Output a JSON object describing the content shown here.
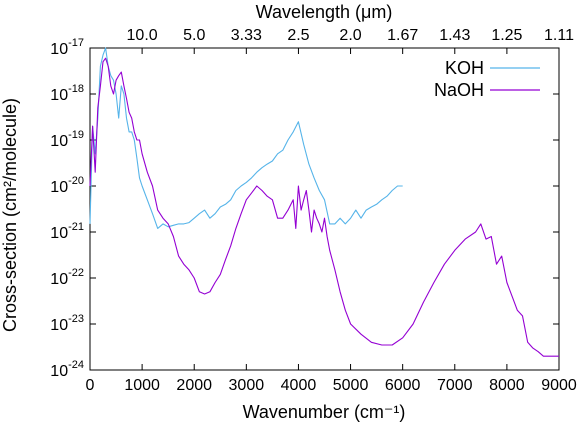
{
  "chart_data": {
    "type": "line",
    "xlabel": "Wavenumber (cm⁻¹)",
    "ylabel": "Cross-section (cm²/molecule)",
    "top_axis_label": "Wavelength (μm)",
    "xlim": [
      0,
      9000
    ],
    "ylim": [
      1e-24,
      1e-17
    ],
    "yscale": "log",
    "grid": false,
    "legend_position": "top-right",
    "x_ticks": [
      "0",
      "1000",
      "2000",
      "3000",
      "4000",
      "5000",
      "6000",
      "7000",
      "8000",
      "9000"
    ],
    "x_tick_values": [
      0,
      1000,
      2000,
      3000,
      4000,
      5000,
      6000,
      7000,
      8000,
      9000
    ],
    "y_tick_exponents": [
      "-24",
      "-23",
      "-22",
      "-21",
      "-20",
      "-19",
      "-18",
      "-17"
    ],
    "y_tick_values": [
      1e-24,
      1e-23,
      1e-22,
      1e-21,
      1e-20,
      1e-19,
      1e-18,
      1e-17
    ],
    "y_tick_base": "10",
    "top_ticks": [
      "10.0",
      "5.0",
      "3.33",
      "2.5",
      "2.0",
      "1.67",
      "1.43",
      "1.25",
      "1.11"
    ],
    "top_tick_wavenumbers": [
      1000,
      2000,
      3000,
      4000,
      5000,
      6000,
      7000,
      8000,
      9000
    ],
    "series": [
      {
        "name": "KOH",
        "color": "#56b4e9",
        "x": [
          0,
          50,
          100,
          150,
          200,
          250,
          300,
          350,
          400,
          450,
          500,
          550,
          600,
          650,
          700,
          750,
          800,
          850,
          900,
          950,
          1000,
          1100,
          1200,
          1300,
          1400,
          1500,
          1600,
          1700,
          1800,
          1900,
          2000,
          2100,
          2200,
          2300,
          2400,
          2500,
          2600,
          2700,
          2800,
          2900,
          3000,
          3100,
          3200,
          3300,
          3400,
          3500,
          3600,
          3700,
          3800,
          3900,
          4000,
          4100,
          4200,
          4300,
          4400,
          4500,
          4600,
          4700,
          4800,
          4900,
          5000,
          5100,
          5200,
          5300,
          5400,
          5500,
          5600,
          5700,
          5800,
          5900,
          6000
        ],
        "y": [
          1.5e-21,
          2e-19,
          5e-20,
          3e-19,
          4e-18,
          7e-18,
          1e-17,
          4e-18,
          2.5e-18,
          2e-18,
          1e-18,
          3e-19,
          1.5e-18,
          1e-18,
          3e-19,
          1.5e-19,
          1.5e-19,
          1e-19,
          4e-20,
          1.5e-20,
          1e-20,
          5e-21,
          2.5e-21,
          1.2e-21,
          1.5e-21,
          1.3e-21,
          1.4e-21,
          1.5e-21,
          1.5e-21,
          1.6e-21,
          2e-21,
          2.5e-21,
          3e-21,
          2e-21,
          2.5e-21,
          3.5e-21,
          4e-21,
          5e-21,
          8e-21,
          1e-20,
          1.2e-20,
          1.5e-20,
          2e-20,
          2.5e-20,
          3e-20,
          3.5e-20,
          5e-20,
          6e-20,
          1e-19,
          1.5e-19,
          2.5e-19,
          8e-20,
          3e-20,
          1.5e-20,
          8e-21,
          5e-21,
          1.5e-21,
          1.5e-21,
          2e-21,
          1.5e-21,
          2e-21,
          3e-21,
          2e-21,
          3e-21,
          3.5e-21,
          4e-21,
          5e-21,
          6e-21,
          8e-21,
          1e-20,
          1e-20
        ]
      },
      {
        "name": "NaOH",
        "color": "#9400d3",
        "x": [
          0,
          50,
          100,
          150,
          200,
          250,
          300,
          350,
          400,
          450,
          500,
          550,
          600,
          650,
          700,
          750,
          800,
          850,
          900,
          950,
          1000,
          1100,
          1200,
          1300,
          1400,
          1500,
          1600,
          1700,
          1800,
          1900,
          2000,
          2100,
          2200,
          2300,
          2400,
          2500,
          2600,
          2700,
          2800,
          2900,
          3000,
          3100,
          3200,
          3300,
          3400,
          3500,
          3600,
          3700,
          3800,
          3900,
          3950,
          4000,
          4050,
          4100,
          4150,
          4200,
          4250,
          4300,
          4350,
          4400,
          4450,
          4500,
          4550,
          4600,
          4700,
          4800,
          4900,
          5000,
          5200,
          5400,
          5600,
          5800,
          6000,
          6200,
          6400,
          6600,
          6800,
          7000,
          7200,
          7400,
          7500,
          7600,
          7700,
          7800,
          7900,
          8000,
          8100,
          8200,
          8300,
          8400,
          8500,
          8600,
          8700,
          8800,
          9000
        ],
        "y": [
          1e-20,
          2e-19,
          2e-20,
          5e-19,
          1.5e-18,
          5e-18,
          6e-18,
          4e-18,
          1.5e-18,
          1e-18,
          2e-18,
          2.5e-18,
          3e-18,
          1.5e-18,
          8e-19,
          4e-19,
          3e-19,
          1.5e-19,
          1e-19,
          1e-19,
          5e-20,
          2e-20,
          1e-20,
          3e-21,
          2e-21,
          1.5e-21,
          8e-22,
          3e-22,
          2e-22,
          1.5e-22,
          1e-22,
          5e-23,
          4.5e-23,
          5e-23,
          8e-23,
          1.2e-22,
          2.5e-22,
          5e-22,
          1.2e-21,
          2.5e-21,
          5e-21,
          7e-21,
          1e-20,
          8e-21,
          6e-21,
          5e-21,
          2e-21,
          2e-21,
          3e-21,
          5e-21,
          1.2e-21,
          1e-20,
          3e-21,
          5e-21,
          8e-21,
          3e-21,
          1e-21,
          3e-21,
          2e-21,
          1.5e-21,
          1e-21,
          2e-21,
          8e-22,
          4e-22,
          1.5e-22,
          5e-23,
          2e-23,
          1e-23,
          6e-24,
          4e-24,
          3.5e-24,
          3.5e-24,
          5e-24,
          1e-23,
          3e-23,
          8e-23,
          2e-22,
          4e-22,
          7e-22,
          1e-21,
          1.5e-21,
          7e-22,
          8e-22,
          2e-22,
          3e-22,
          8e-23,
          4e-23,
          2e-23,
          1.5e-23,
          4e-24,
          3e-24,
          2.5e-24,
          2e-24,
          2e-24,
          2e-24
        ]
      }
    ]
  }
}
